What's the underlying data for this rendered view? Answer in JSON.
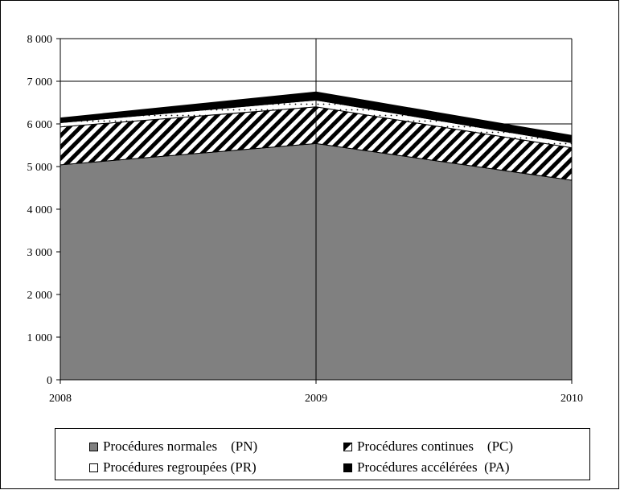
{
  "chart_data": {
    "type": "area",
    "stacked": true,
    "x": [
      "2008",
      "2009",
      "2010"
    ],
    "ylim": [
      0,
      8000
    ],
    "yticks": [
      "0",
      "1 000",
      "2 000",
      "3 000",
      "4 000",
      "5 000",
      "6 000",
      "7 000",
      "8 000"
    ],
    "grid": true,
    "legend_position": "bottom",
    "series": [
      {
        "name": "Procédures normales    (PN)",
        "values": [
          5040,
          5540,
          4680
        ],
        "color": "#808080",
        "pattern": "solid"
      },
      {
        "name": "Procédures continues    (PC)",
        "values": [
          890,
          860,
          760
        ],
        "color": "#000000",
        "pattern": "diagonal-hatch"
      },
      {
        "name": "Procédures regroupées (PR)",
        "values": [
          100,
          160,
          120
        ],
        "color": "#ffffff",
        "pattern": "dotted"
      },
      {
        "name": "Procédures accélérées  (PA)",
        "values": [
          110,
          190,
          170
        ],
        "color": "#000000",
        "pattern": "solid"
      }
    ]
  }
}
